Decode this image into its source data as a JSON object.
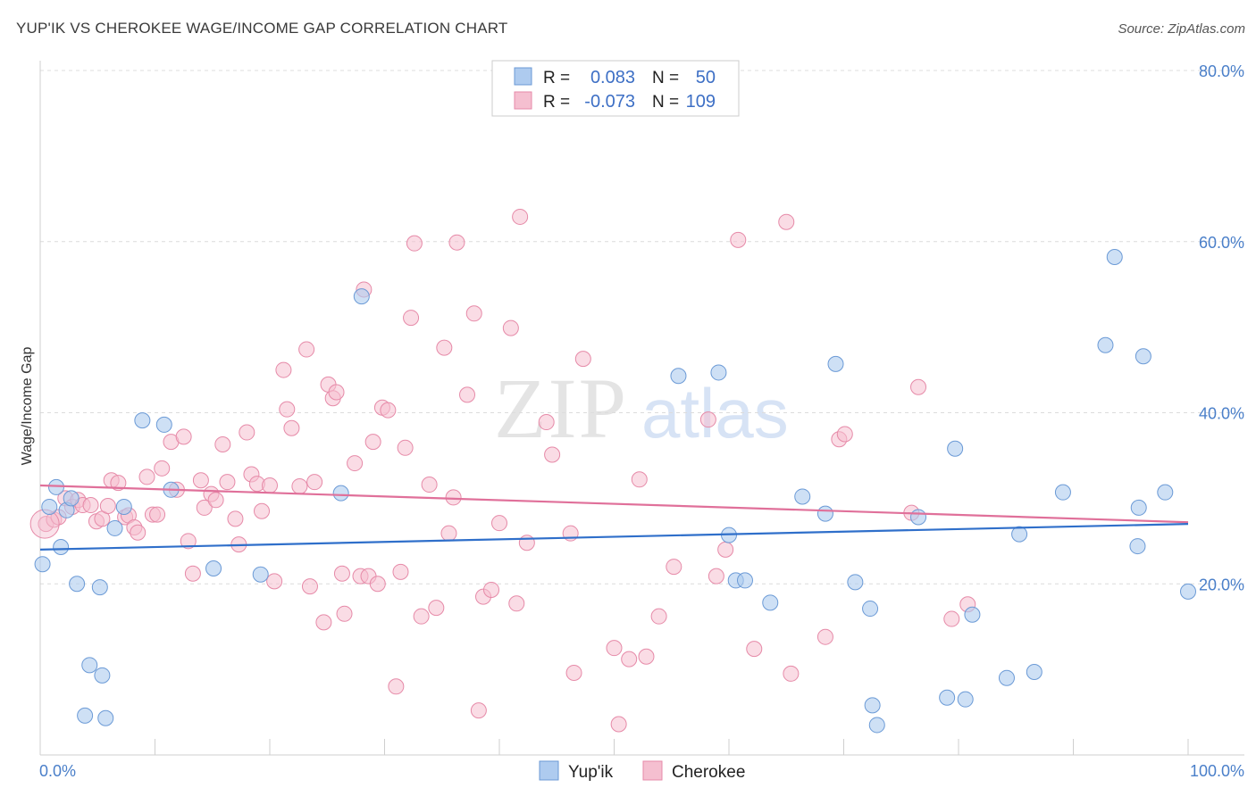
{
  "title": "YUP'IK VS CHEROKEE WAGE/INCOME GAP CORRELATION CHART",
  "source": "Source: ZipAtlas.com",
  "colors": {
    "yupik_fill": "#aecbef",
    "yupik_stroke": "#6b9ad6",
    "yupik_line": "#2f6fca",
    "cherokee_fill": "#f5bfd0",
    "cherokee_stroke": "#e68aa8",
    "cherokee_line": "#e0709a",
    "tick_text": "#4a7fc9",
    "grid": "#dcdcdc"
  },
  "legend": {
    "r_label": "R =",
    "n_label": "N =",
    "rows": [
      {
        "series": "Yup'ik",
        "r": "0.083",
        "n": "50"
      },
      {
        "series": "Cherokee",
        "r": "-0.073",
        "n": "109"
      }
    ]
  },
  "chart_data": {
    "type": "scatter",
    "title": "YUP'IK VS CHEROKEE WAGE/INCOME GAP CORRELATION CHART",
    "xlabel": "",
    "ylabel": "Wage/Income Gap",
    "xlim": [
      0,
      100
    ],
    "ylim": [
      0,
      80
    ],
    "x_tick_labels": [
      "0.0%",
      "100.0%"
    ],
    "y_ticks": [
      20,
      40,
      60,
      80
    ],
    "y_tick_labels": [
      "20.0%",
      "40.0%",
      "60.0%",
      "80.0%"
    ],
    "grid": "horizontal dashed",
    "legend_position": "top-center",
    "series": [
      {
        "name": "Yup'ik",
        "trend": {
          "x": [
            0,
            100
          ],
          "y": [
            24.0,
            27.0
          ]
        },
        "points": [
          [
            0.2,
            22.3
          ],
          [
            0.8,
            29.0
          ],
          [
            1.4,
            31.3
          ],
          [
            1.8,
            24.3
          ],
          [
            2.3,
            28.6
          ],
          [
            2.7,
            30.0
          ],
          [
            3.2,
            20.0
          ],
          [
            4.3,
            10.5
          ],
          [
            5.2,
            19.6
          ],
          [
            5.4,
            9.3
          ],
          [
            3.9,
            4.6
          ],
          [
            5.7,
            4.3
          ],
          [
            6.5,
            26.5
          ],
          [
            7.3,
            29.0
          ],
          [
            8.9,
            39.1
          ],
          [
            10.8,
            38.6
          ],
          [
            11.4,
            31.0
          ],
          [
            15.1,
            21.8
          ],
          [
            19.2,
            21.1
          ],
          [
            26.2,
            30.6
          ],
          [
            28.0,
            53.6
          ],
          [
            55.6,
            44.3
          ],
          [
            59.1,
            44.7
          ],
          [
            60.0,
            25.7
          ],
          [
            60.6,
            20.4
          ],
          [
            61.4,
            20.4
          ],
          [
            63.6,
            17.8
          ],
          [
            66.4,
            30.2
          ],
          [
            68.4,
            28.2
          ],
          [
            69.3,
            45.7
          ],
          [
            71.0,
            20.2
          ],
          [
            72.3,
            17.1
          ],
          [
            72.5,
            5.8
          ],
          [
            72.9,
            3.5
          ],
          [
            76.5,
            27.8
          ],
          [
            79.7,
            35.8
          ],
          [
            79.0,
            6.7
          ],
          [
            80.6,
            6.5
          ],
          [
            81.2,
            16.4
          ],
          [
            84.2,
            9.0
          ],
          [
            85.3,
            25.8
          ],
          [
            86.6,
            9.7
          ],
          [
            89.1,
            30.7
          ],
          [
            92.8,
            47.9
          ],
          [
            93.6,
            58.2
          ],
          [
            95.6,
            24.4
          ],
          [
            95.7,
            28.9
          ],
          [
            96.1,
            46.6
          ],
          [
            98.0,
            30.7
          ],
          [
            100.0,
            19.1
          ]
        ]
      },
      {
        "name": "Cherokee",
        "trend": {
          "x": [
            0,
            100
          ],
          "y": [
            31.5,
            27.2
          ]
        },
        "points": [
          [
            0.5,
            27.0
          ],
          [
            1.2,
            27.5
          ],
          [
            1.6,
            27.8
          ],
          [
            2.2,
            30.0
          ],
          [
            2.8,
            29.0
          ],
          [
            3.3,
            29.8
          ],
          [
            3.7,
            29.2
          ],
          [
            4.4,
            29.2
          ],
          [
            4.9,
            27.3
          ],
          [
            5.4,
            27.6
          ],
          [
            5.9,
            29.1
          ],
          [
            6.2,
            32.1
          ],
          [
            6.8,
            31.8
          ],
          [
            7.4,
            27.8
          ],
          [
            7.7,
            28.0
          ],
          [
            8.2,
            26.6
          ],
          [
            8.5,
            26.0
          ],
          [
            9.3,
            32.5
          ],
          [
            9.8,
            28.1
          ],
          [
            10.2,
            28.1
          ],
          [
            10.6,
            33.5
          ],
          [
            11.4,
            36.6
          ],
          [
            11.9,
            31.0
          ],
          [
            12.5,
            37.2
          ],
          [
            12.9,
            25.0
          ],
          [
            13.3,
            21.2
          ],
          [
            14.0,
            32.1
          ],
          [
            14.3,
            28.9
          ],
          [
            14.9,
            30.5
          ],
          [
            15.3,
            29.8
          ],
          [
            15.9,
            36.3
          ],
          [
            16.3,
            31.9
          ],
          [
            17.0,
            27.6
          ],
          [
            17.3,
            24.6
          ],
          [
            18.0,
            37.7
          ],
          [
            18.4,
            32.8
          ],
          [
            18.9,
            31.7
          ],
          [
            19.3,
            28.5
          ],
          [
            20.0,
            31.5
          ],
          [
            20.4,
            20.3
          ],
          [
            21.2,
            45.0
          ],
          [
            21.5,
            40.4
          ],
          [
            21.9,
            38.2
          ],
          [
            22.6,
            31.4
          ],
          [
            23.2,
            47.4
          ],
          [
            23.5,
            19.7
          ],
          [
            23.9,
            31.9
          ],
          [
            24.7,
            15.5
          ],
          [
            25.1,
            43.3
          ],
          [
            25.5,
            41.7
          ],
          [
            25.8,
            42.4
          ],
          [
            26.3,
            21.2
          ],
          [
            26.5,
            16.5
          ],
          [
            27.4,
            34.1
          ],
          [
            27.9,
            20.9
          ],
          [
            28.2,
            54.4
          ],
          [
            28.6,
            20.9
          ],
          [
            29.0,
            36.6
          ],
          [
            29.4,
            20.0
          ],
          [
            29.8,
            40.6
          ],
          [
            30.3,
            40.3
          ],
          [
            31.0,
            8.0
          ],
          [
            31.4,
            21.4
          ],
          [
            31.8,
            35.9
          ],
          [
            32.3,
            51.1
          ],
          [
            32.6,
            59.8
          ],
          [
            33.2,
            16.2
          ],
          [
            33.9,
            31.6
          ],
          [
            34.5,
            17.2
          ],
          [
            35.2,
            47.6
          ],
          [
            35.6,
            25.9
          ],
          [
            36.0,
            30.1
          ],
          [
            36.3,
            59.9
          ],
          [
            37.2,
            42.1
          ],
          [
            37.8,
            51.6
          ],
          [
            38.2,
            5.2
          ],
          [
            38.6,
            18.5
          ],
          [
            39.3,
            19.3
          ],
          [
            40.0,
            27.1
          ],
          [
            41.0,
            49.9
          ],
          [
            41.5,
            17.7
          ],
          [
            41.8,
            62.9
          ],
          [
            42.4,
            24.8
          ],
          [
            44.1,
            38.9
          ],
          [
            44.6,
            35.1
          ],
          [
            46.2,
            25.9
          ],
          [
            46.5,
            9.6
          ],
          [
            47.3,
            46.3
          ],
          [
            50.0,
            12.5
          ],
          [
            50.4,
            3.6
          ],
          [
            51.3,
            11.2
          ],
          [
            52.2,
            32.2
          ],
          [
            52.8,
            11.5
          ],
          [
            53.9,
            16.2
          ],
          [
            55.2,
            22.0
          ],
          [
            58.2,
            39.2
          ],
          [
            58.9,
            20.9
          ],
          [
            59.7,
            24.0
          ],
          [
            60.8,
            60.2
          ],
          [
            62.2,
            12.4
          ],
          [
            65.0,
            62.3
          ],
          [
            65.4,
            9.5
          ],
          [
            68.4,
            13.8
          ],
          [
            69.6,
            36.9
          ],
          [
            70.1,
            37.5
          ],
          [
            75.9,
            28.3
          ],
          [
            76.5,
            43.0
          ],
          [
            79.4,
            15.9
          ],
          [
            80.8,
            17.6
          ]
        ]
      }
    ]
  },
  "bottom_legend": [
    "Yup'ik",
    "Cherokee"
  ],
  "watermark": {
    "zip": "ZIP",
    "atlas": "atlas"
  }
}
